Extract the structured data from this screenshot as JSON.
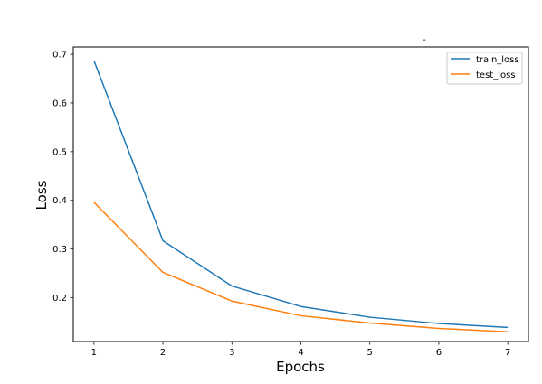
{
  "chart_data": {
    "type": "line",
    "title": "-",
    "xlabel": "Epochs",
    "ylabel": "Loss",
    "x": [
      1,
      2,
      3,
      4,
      5,
      6,
      7
    ],
    "xticks": [
      1,
      2,
      3,
      4,
      5,
      6,
      7
    ],
    "yticks": [
      0.2,
      0.3,
      0.4,
      0.5,
      0.6,
      0.7
    ],
    "xlim": [
      0.7,
      7.3
    ],
    "ylim": [
      0.11,
      0.715
    ],
    "grid": false,
    "legend_position": "upper-right",
    "series": [
      {
        "name": "train_loss",
        "color": "#1f77b4",
        "values": [
          0.687,
          0.317,
          0.224,
          0.182,
          0.16,
          0.147,
          0.139
        ]
      },
      {
        "name": "test_loss",
        "color": "#ff7f0e",
        "values": [
          0.396,
          0.252,
          0.193,
          0.163,
          0.148,
          0.137,
          0.13
        ]
      }
    ]
  }
}
